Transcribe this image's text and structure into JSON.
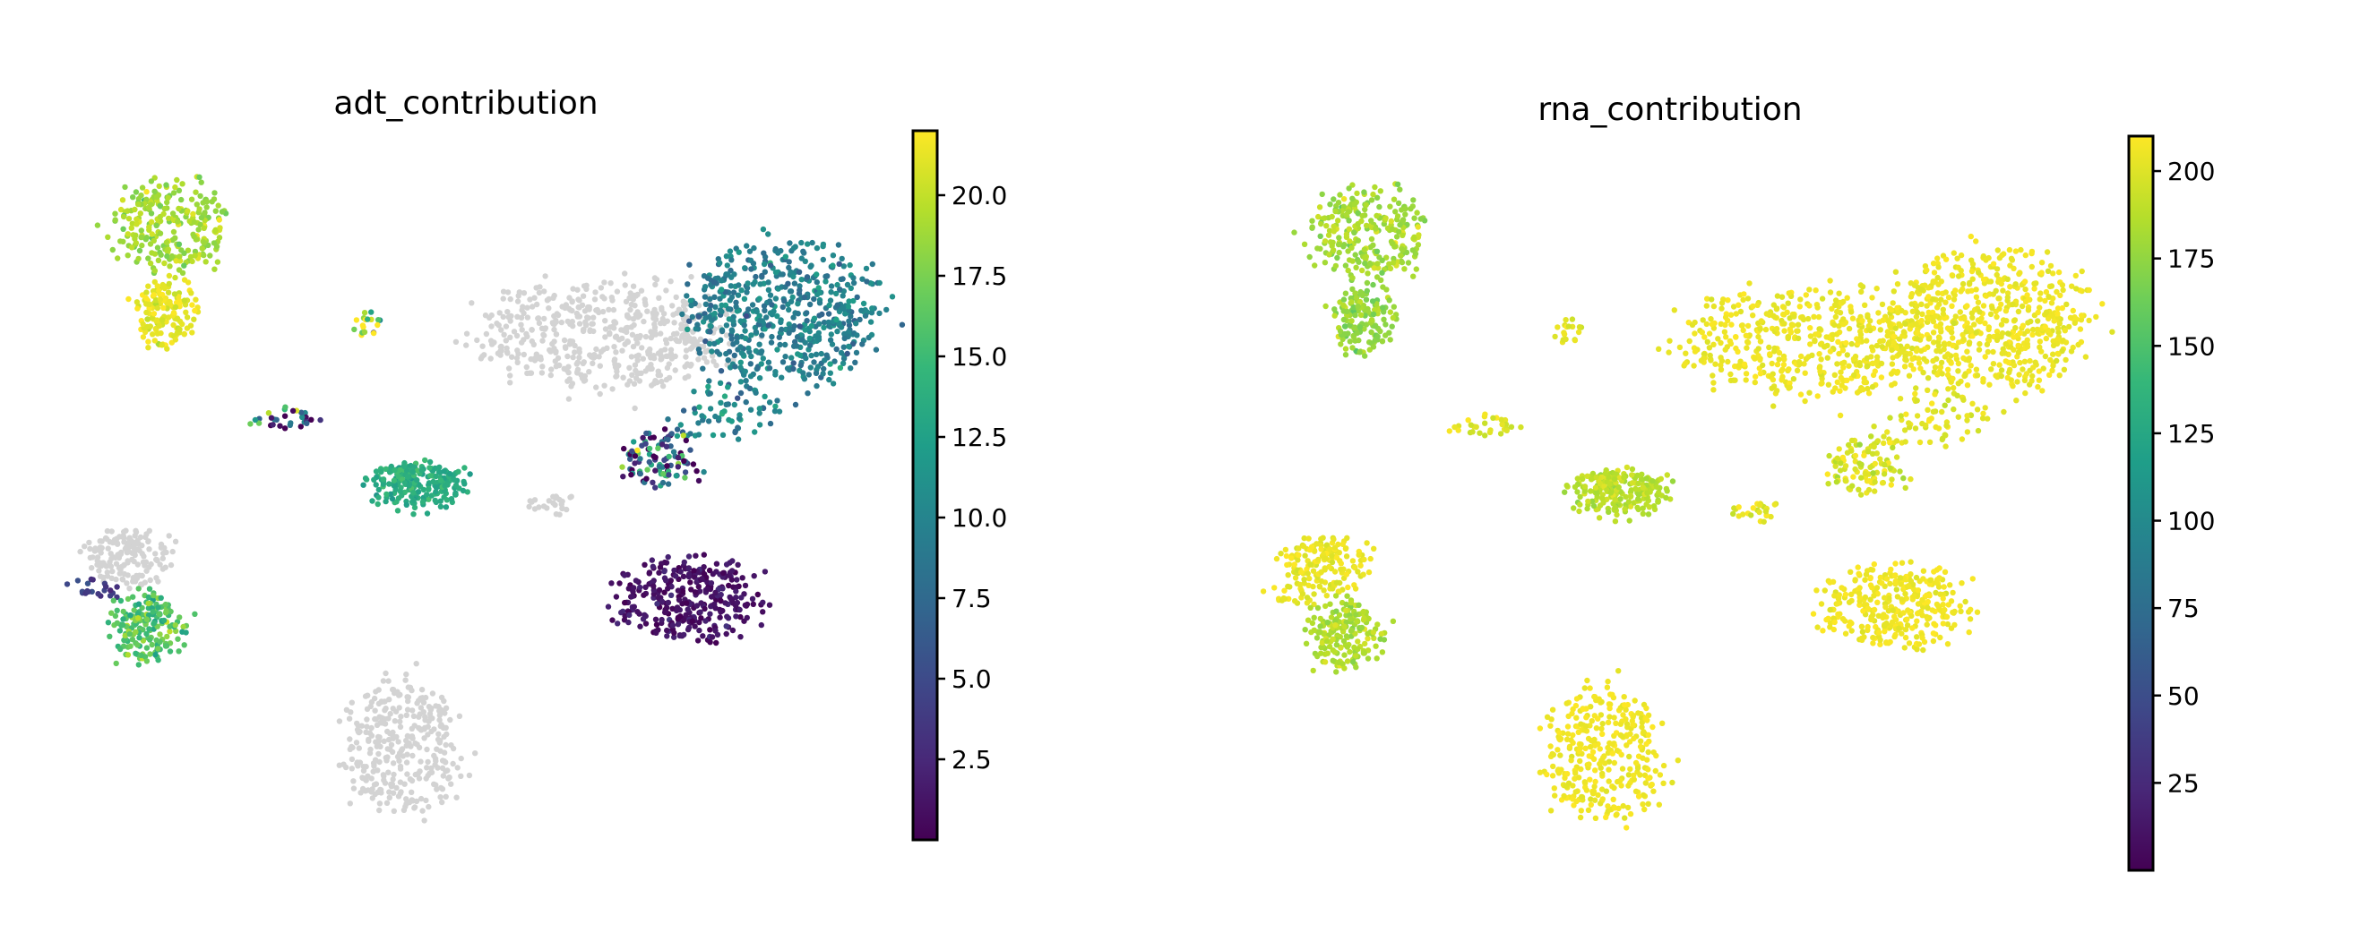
{
  "chart_data": [
    {
      "type": "scatter",
      "title": "adt_contribution",
      "xlabel": "",
      "ylabel": "",
      "colormap": "viridis",
      "missing_color": "#d3d3d3",
      "colorbar": {
        "min": 0,
        "max": 22,
        "ticks": [
          2.5,
          5.0,
          7.5,
          10.0,
          12.5,
          15.0,
          17.5,
          20.0
        ],
        "tick_labels": [
          "2.5",
          "5.0",
          "7.5",
          "10.0",
          "12.5",
          "15.0",
          "17.5",
          "20.0"
        ]
      },
      "clusters": [
        {
          "cx": -8.2,
          "cy": 8.0,
          "rx": 1.6,
          "ry": 1.2,
          "n": 260,
          "value": 19.0,
          "spread": 1.0
        },
        {
          "cx": -8.4,
          "cy": 5.6,
          "rx": 0.9,
          "ry": 0.9,
          "n": 140,
          "value": 21.2,
          "spread": 0.7
        },
        {
          "cx": -2.8,
          "cy": 5.3,
          "rx": 0.4,
          "ry": 0.4,
          "n": 18,
          "value": 18.0,
          "spread": 6.0
        },
        {
          "cx": -5.2,
          "cy": 2.7,
          "rx": 0.9,
          "ry": 0.35,
          "n": 30,
          "value": 7.5,
          "spread": 7.0
        },
        {
          "cx": 3.7,
          "cy": 5.0,
          "rx": 3.6,
          "ry": 1.5,
          "n": 520,
          "value": null
        },
        {
          "cx": 8.6,
          "cy": 5.6,
          "rx": 2.5,
          "ry": 1.9,
          "n": 560,
          "value": 9.6,
          "spread": 1.4
        },
        {
          "cx": 7.0,
          "cy": 3.0,
          "rx": 1.3,
          "ry": 0.8,
          "n": 70,
          "value": 10.5,
          "spread": 2.0
        },
        {
          "cx": -1.4,
          "cy": 0.9,
          "rx": 1.3,
          "ry": 0.65,
          "n": 210,
          "value": 13.6,
          "spread": 0.9
        },
        {
          "cx": 2.2,
          "cy": 0.4,
          "rx": 0.7,
          "ry": 0.3,
          "n": 25,
          "value": null
        },
        {
          "cx": 5.3,
          "cy": 1.6,
          "rx": 1.1,
          "ry": 0.8,
          "n": 110,
          "value": 6.0,
          "spread": 8.0
        },
        {
          "cx": 6.0,
          "cy": -2.2,
          "rx": 1.9,
          "ry": 1.1,
          "n": 330,
          "value": 1.0,
          "spread": 0.8
        },
        {
          "cx": -9.4,
          "cy": -1.1,
          "rx": 1.2,
          "ry": 0.8,
          "n": 160,
          "value": null
        },
        {
          "cx": -10.4,
          "cy": -1.9,
          "rx": 0.9,
          "ry": 0.25,
          "n": 22,
          "value": 4.2,
          "spread": 1.0
        },
        {
          "cx": -8.9,
          "cy": -3.0,
          "rx": 1.0,
          "ry": 0.9,
          "n": 180,
          "value": 16.0,
          "spread": 1.5
        },
        {
          "cx": -1.8,
          "cy": -6.3,
          "rx": 1.6,
          "ry": 1.8,
          "n": 330,
          "value": null
        }
      ]
    },
    {
      "type": "scatter",
      "title": "rna_contribution",
      "xlabel": "",
      "ylabel": "",
      "colormap": "viridis",
      "missing_color": "#d3d3d3",
      "colorbar": {
        "min": 0,
        "max": 210,
        "ticks": [
          25,
          50,
          75,
          100,
          125,
          150,
          175,
          200
        ],
        "tick_labels": [
          "25",
          "50",
          "75",
          "100",
          "125",
          "150",
          "175",
          "200"
        ]
      },
      "clusters": [
        {
          "cx": -8.2,
          "cy": 8.0,
          "rx": 1.6,
          "ry": 1.2,
          "n": 260,
          "value": 182,
          "spread": 8
        },
        {
          "cx": -8.4,
          "cy": 5.6,
          "rx": 0.9,
          "ry": 0.9,
          "n": 140,
          "value": 176,
          "spread": 8
        },
        {
          "cx": -2.8,
          "cy": 5.3,
          "rx": 0.4,
          "ry": 0.4,
          "n": 18,
          "value": 200,
          "spread": 6
        },
        {
          "cx": -5.2,
          "cy": 2.7,
          "rx": 0.9,
          "ry": 0.35,
          "n": 30,
          "value": 200,
          "spread": 6
        },
        {
          "cx": 3.7,
          "cy": 5.0,
          "rx": 3.6,
          "ry": 1.5,
          "n": 520,
          "value": 205,
          "spread": 3
        },
        {
          "cx": 8.6,
          "cy": 5.6,
          "rx": 2.5,
          "ry": 1.9,
          "n": 560,
          "value": 205,
          "spread": 3
        },
        {
          "cx": 7.0,
          "cy": 3.0,
          "rx": 1.3,
          "ry": 0.8,
          "n": 70,
          "value": 202,
          "spread": 5
        },
        {
          "cx": -1.4,
          "cy": 0.9,
          "rx": 1.3,
          "ry": 0.65,
          "n": 210,
          "value": 188,
          "spread": 6
        },
        {
          "cx": 2.2,
          "cy": 0.4,
          "rx": 0.7,
          "ry": 0.3,
          "n": 25,
          "value": 200,
          "spread": 6
        },
        {
          "cx": 5.3,
          "cy": 1.6,
          "rx": 1.1,
          "ry": 0.8,
          "n": 110,
          "value": 198,
          "spread": 8
        },
        {
          "cx": 6.0,
          "cy": -2.2,
          "rx": 1.9,
          "ry": 1.1,
          "n": 330,
          "value": 206,
          "spread": 3
        },
        {
          "cx": -9.4,
          "cy": -1.1,
          "rx": 1.2,
          "ry": 0.8,
          "n": 160,
          "value": 204,
          "spread": 4
        },
        {
          "cx": -10.4,
          "cy": -1.9,
          "rx": 0.9,
          "ry": 0.25,
          "n": 22,
          "value": 204,
          "spread": 4
        },
        {
          "cx": -8.9,
          "cy": -3.0,
          "rx": 1.0,
          "ry": 0.9,
          "n": 180,
          "value": 185,
          "spread": 6
        },
        {
          "cx": -1.8,
          "cy": -6.3,
          "rx": 1.6,
          "ry": 1.8,
          "n": 330,
          "value": 206,
          "spread": 3
        }
      ]
    }
  ]
}
